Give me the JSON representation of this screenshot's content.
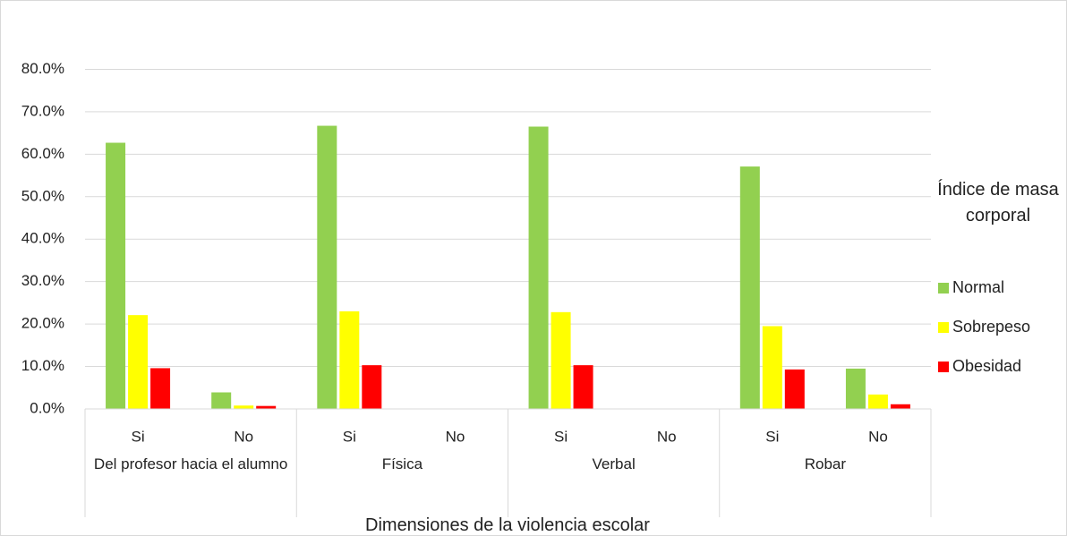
{
  "chart_data": {
    "type": "bar",
    "x_label": "Dimensiones de la violencia escolar",
    "categories": [
      "Si",
      "No",
      "Si",
      "No",
      "Si",
      "No",
      "Si",
      "No"
    ],
    "groups": [
      "Del profesor hacia el alumno",
      "Física",
      "Verbal",
      "Robar"
    ],
    "legend_title": "Índice de masa corporal",
    "legend_position": "right",
    "series": [
      {
        "name": "Normal",
        "color": "#92d050",
        "values": [
          62.7,
          3.9,
          66.7,
          0,
          66.5,
          0,
          57.1,
          9.5
        ]
      },
      {
        "name": "Sobrepeso",
        "color": "#ffff00",
        "values": [
          22.1,
          0.8,
          23.0,
          0,
          22.8,
          0,
          19.5,
          3.4
        ]
      },
      {
        "name": "Obesidad",
        "color": "#ff0000",
        "values": [
          9.6,
          0.7,
          10.3,
          0,
          10.3,
          0,
          9.3,
          1.1
        ]
      }
    ],
    "ylim": [
      0,
      90
    ],
    "yticks": [
      {
        "value": 0,
        "label": "0.0%"
      },
      {
        "value": 10,
        "label": "10.0%"
      },
      {
        "value": 20,
        "label": "20.0%"
      },
      {
        "value": 30,
        "label": "30.0%"
      },
      {
        "value": 40,
        "label": "40.0%"
      },
      {
        "value": 50,
        "label": "50.0%"
      },
      {
        "value": 60,
        "label": "60.0%"
      },
      {
        "value": 70,
        "label": "70.0%"
      },
      {
        "value": 80,
        "label": "80.0%"
      }
    ],
    "grid": true
  }
}
